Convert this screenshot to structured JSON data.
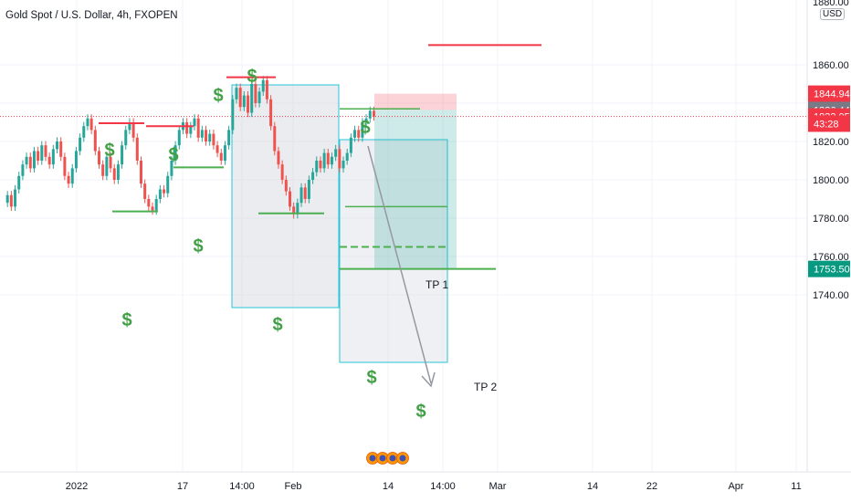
{
  "header": {
    "title": "Gold Spot / U.S. Dollar, 4h, FXOPEN",
    "currency": "USD"
  },
  "chart_data": {
    "type": "line",
    "title": "Gold Spot / U.S. Dollar, 4h, FXOPEN",
    "ylim": [
      1728,
      1882
    ],
    "y_ticks": [
      1740,
      1760,
      1780,
      1800,
      1820,
      1840,
      1860
    ],
    "y_tick_labels": [
      "1740.00",
      "1760.00",
      "1780.00",
      "1800.00",
      "1820.00",
      "1840.00",
      "1860.00"
    ],
    "top_partial_tick": "1880.00",
    "x_ticks": [
      "2022",
      "17",
      "14:00",
      "Feb",
      "14",
      "14:00",
      "Mar",
      "14",
      "22",
      "Apr",
      "11"
    ],
    "price_labels": [
      {
        "text": "1844.94",
        "value": 1844.94,
        "color": "#f23645"
      },
      {
        "text": "1836.44",
        "value": 1836.44,
        "color": "#787b86"
      },
      {
        "text": "1833.05",
        "value": 1833.05,
        "color": "#f23645"
      },
      {
        "text": "43:28",
        "value": 1829.3,
        "color": "#f23645"
      },
      {
        "text": "1753.50",
        "value": 1753.5,
        "color": "#089981"
      }
    ],
    "series": [
      {
        "values": [
          1788,
          1792,
          1786,
          1795,
          1802,
          1808,
          1812,
          1806,
          1815,
          1810,
          1818,
          1812,
          1808,
          1816,
          1820,
          1812,
          1802,
          1798,
          1806,
          1815,
          1822,
          1828,
          1832,
          1826,
          1815,
          1808,
          1802,
          1812,
          1806,
          1800,
          1808,
          1818,
          1826,
          1830,
          1822,
          1810,
          1798,
          1790,
          1786,
          1784,
          1790,
          1795,
          1793,
          1802,
          1810,
          1818,
          1826,
          1830,
          1824,
          1828,
          1832,
          1822,
          1826,
          1820,
          1824,
          1818,
          1814,
          1810,
          1818,
          1826,
          1842,
          1848,
          1838,
          1844,
          1835,
          1850,
          1840,
          1846,
          1852,
          1842,
          1828,
          1815,
          1808,
          1800,
          1794,
          1786,
          1782,
          1788,
          1796,
          1790,
          1800,
          1804,
          1810,
          1806,
          1814,
          1808,
          1812,
          1816,
          1806,
          1810,
          1814,
          1822,
          1826,
          1822,
          1830,
          1832,
          1836,
          1833.05
        ]
      }
    ],
    "annotations": {
      "dollar_signs": [
        "$",
        "$",
        "$",
        "$",
        "$",
        "$",
        "$",
        "$",
        "$",
        "$",
        "$"
      ],
      "tp1": "TP 1",
      "tp2": "TP 2"
    },
    "levels": {
      "resistance_far": 1870.3,
      "entry": 1836.44,
      "stop": 1844.94,
      "tp1": 1786,
      "tp_box_bottom": 1765,
      "tp2": 1753.5
    },
    "grid": true,
    "legend": "none"
  },
  "colors": {
    "up": "#26a69a",
    "down": "#ef5350",
    "support": "#4caf50",
    "resistance": "#f23645",
    "box_border": "#26c6da",
    "dollar": "#43a047"
  }
}
